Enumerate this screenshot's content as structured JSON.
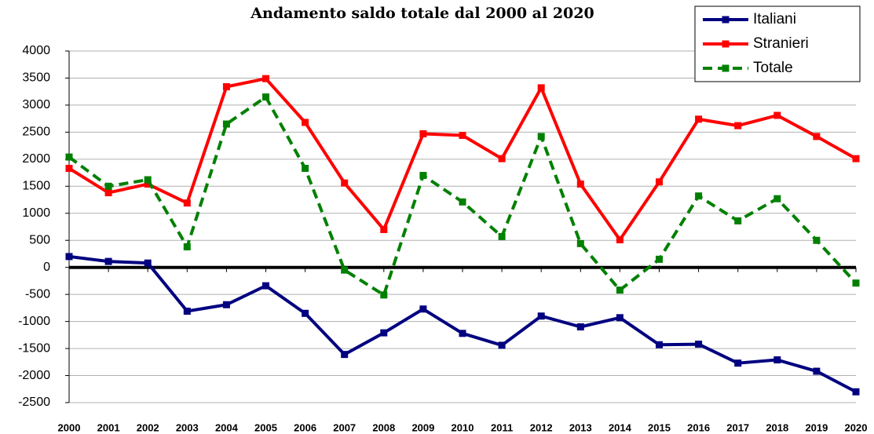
{
  "chart_data": {
    "type": "line",
    "title": "Andamento saldo totale dal  2000 al 2020",
    "categories": [
      "2000",
      "2001",
      "2002",
      "2003",
      "2004",
      "2005",
      "2006",
      "2007",
      "2008",
      "2009",
      "2010",
      "2011",
      "2012",
      "2013",
      "2014",
      "2015",
      "2016",
      "2017",
      "2018",
      "2019",
      "2020"
    ],
    "series": [
      {
        "name": "Italiani",
        "color": "#000080",
        "dashed": false,
        "values": [
          200,
          110,
          80,
          -810,
          -690,
          -340,
          -850,
          -1610,
          -1210,
          -770,
          -1220,
          -1440,
          -900,
          -1100,
          -930,
          -1430,
          -1420,
          -1770,
          -1710,
          -1920,
          -2300
        ]
      },
      {
        "name": "Stranieri",
        "color": "#ff0000",
        "dashed": false,
        "values": [
          1830,
          1380,
          1540,
          1190,
          3340,
          3490,
          2680,
          1560,
          700,
          2470,
          2440,
          2010,
          3320,
          1540,
          510,
          1580,
          2740,
          2620,
          2810,
          2420,
          2010
        ]
      },
      {
        "name": "Totale",
        "color": "#008000",
        "dashed": true,
        "values": [
          2040,
          1500,
          1620,
          380,
          2650,
          3150,
          1830,
          -50,
          -510,
          1700,
          1210,
          570,
          2420,
          440,
          -420,
          150,
          1320,
          860,
          1270,
          500,
          -290
        ]
      }
    ],
    "ylim": [
      -2500,
      4000
    ],
    "yticks": [
      -2500,
      -2000,
      -1500,
      -1000,
      -500,
      0,
      500,
      1000,
      1500,
      2000,
      2500,
      3000,
      3500,
      4000
    ],
    "grid": true,
    "legend": "top-right"
  }
}
